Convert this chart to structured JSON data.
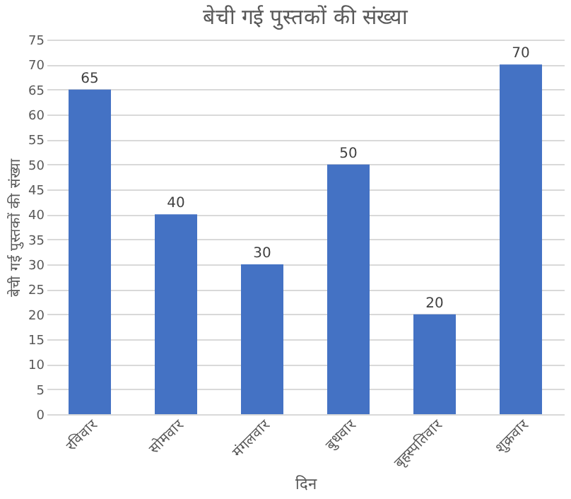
{
  "chart_data": {
    "type": "bar",
    "title": "बेची गई पुस्तकों की संख्या",
    "xlabel": "दिन",
    "ylabel": "बेची गई पुस्तकों की संख्या",
    "categories": [
      "रविवार",
      "सोमवार",
      "मंगलवार",
      "बुधवार",
      "बृहस्पतिवार",
      "शुक्रवार"
    ],
    "values": [
      65,
      40,
      30,
      50,
      20,
      70
    ],
    "color": "#4472c4",
    "ylim": [
      0,
      75
    ],
    "yticks": [
      0,
      5,
      10,
      15,
      20,
      25,
      30,
      35,
      40,
      45,
      50,
      55,
      60,
      65,
      70,
      75
    ],
    "grid": "y",
    "data_labels": true
  }
}
